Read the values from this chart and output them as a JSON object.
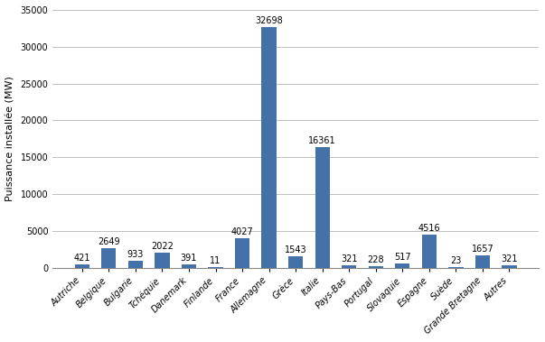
{
  "categories": [
    "Autriche",
    "Belgique",
    "Bulgarie",
    "Tchéquie",
    "Danemark",
    "Finlande",
    "France",
    "Allemagne",
    "Grèce",
    "Italie",
    "Pays-Bas",
    "Portugal",
    "Slovaquie",
    "Espagne",
    "Suède",
    "Grande Bretagne",
    "Autres"
  ],
  "values": [
    421,
    2649,
    933,
    2022,
    391,
    11,
    4027,
    32698,
    1543,
    16361,
    321,
    228,
    517,
    4516,
    23,
    1657,
    321
  ],
  "bar_color": "#4472a8",
  "ylabel": "Puissance installée (MW)",
  "ylim": [
    0,
    35000
  ],
  "yticks": [
    0,
    5000,
    10000,
    15000,
    20000,
    25000,
    30000,
    35000
  ],
  "background_color": "#ffffff",
  "grid_color": "#c0c0c0",
  "label_fontsize": 7,
  "tick_fontsize": 7,
  "ylabel_fontsize": 8,
  "bar_width": 0.55
}
